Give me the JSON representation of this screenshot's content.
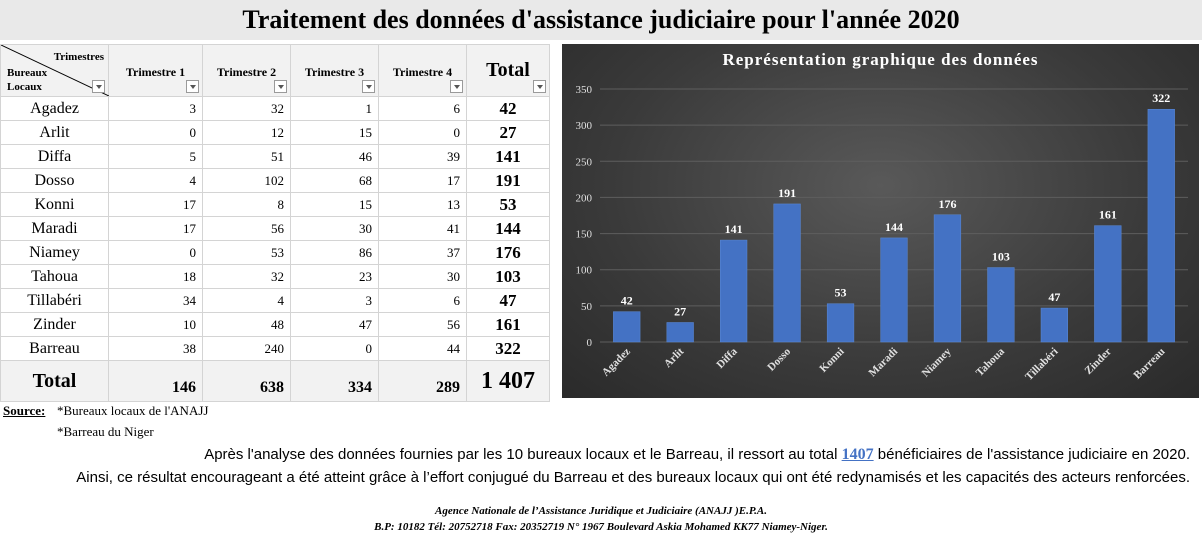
{
  "title": "Traitement des données d'assistance judiciaire pour l'année 2020",
  "table": {
    "corner_top": "Trimestres",
    "corner_bottom_1": "Bureaux",
    "corner_bottom_2": "Locaux",
    "headers": [
      "Trimestre 1",
      "Trimestre 2",
      "Trimestre 3",
      "Trimestre 4"
    ],
    "total_header": "Total",
    "rows": [
      {
        "office": "Agadez",
        "q": [
          "3",
          "32",
          "1",
          "6"
        ],
        "total": "42"
      },
      {
        "office": "Arlit",
        "q": [
          "0",
          "12",
          "15",
          "0"
        ],
        "total": "27"
      },
      {
        "office": "Diffa",
        "q": [
          "5",
          "51",
          "46",
          "39"
        ],
        "total": "141"
      },
      {
        "office": "Dosso",
        "q": [
          "4",
          "102",
          "68",
          "17"
        ],
        "total": "191"
      },
      {
        "office": "Konni",
        "q": [
          "17",
          "8",
          "15",
          "13"
        ],
        "total": "53"
      },
      {
        "office": "Maradi",
        "q": [
          "17",
          "56",
          "30",
          "41"
        ],
        "total": "144"
      },
      {
        "office": "Niamey",
        "q": [
          "0",
          "53",
          "86",
          "37"
        ],
        "total": "176"
      },
      {
        "office": "Tahoua",
        "q": [
          "18",
          "32",
          "23",
          "30"
        ],
        "total": "103"
      },
      {
        "office": "Tillabéri",
        "q": [
          "34",
          "4",
          "3",
          "6"
        ],
        "total": "47"
      },
      {
        "office": "Zinder",
        "q": [
          "10",
          "48",
          "47",
          "56"
        ],
        "total": "161"
      },
      {
        "office": "Barreau",
        "q": [
          "38",
          "240",
          "0",
          "44"
        ],
        "total": "322"
      }
    ],
    "footer": {
      "label": "Total",
      "q": [
        "146",
        "638",
        "334",
        "289"
      ],
      "total": "1 407"
    }
  },
  "chart_data": {
    "type": "bar",
    "title": "Représentation graphique des données",
    "categories": [
      "Agadez",
      "Arlit",
      "Diffa",
      "Dosso",
      "Konni",
      "Maradi",
      "Niamey",
      "Tahoua",
      "Tillabéri",
      "Zinder",
      "Barreau"
    ],
    "values": [
      42,
      27,
      141,
      191,
      53,
      144,
      176,
      103,
      47,
      161,
      322
    ],
    "ylim": [
      0,
      350
    ],
    "yticks": [
      0,
      50,
      100,
      150,
      200,
      250,
      300,
      350
    ],
    "grid": true,
    "data_labels": true,
    "bar_color": "#4472c4",
    "background": "#404040"
  },
  "source": {
    "label": "Source:",
    "line1": "*Bureaux locaux de l'ANAJJ",
    "line2": "*Barreau du Niger"
  },
  "paragraph": {
    "p1_before": "Après l'analyse des données fournies par les 10 bureaux locaux et le Barreau, il ressort au total",
    "p1_highlight": "1407",
    "p1_after": "bénéficiaires de l'assistance judiciaire en 2020.",
    "p2": "Ainsi, ce résultat encourageant a été atteint grâce à l’effort conjugué du Barreau et des bureaux locaux qui ont été redynamisés et les capacités des acteurs renforcées."
  },
  "footer": {
    "line1": "Agence Nationale de l’Assistance Juridique et Judiciaire (ANAJJ )E.P.A.",
    "line2": "B.P: 10182 Tél: 20752718 Fax: 20352719 N° 1967 Boulevard Askia Mohamed KK77 Niamey-Niger."
  },
  "colors": {
    "highlight": "#4472c4",
    "header_bg": "#f2f2f2",
    "title_bg": "#e9e9e9"
  }
}
